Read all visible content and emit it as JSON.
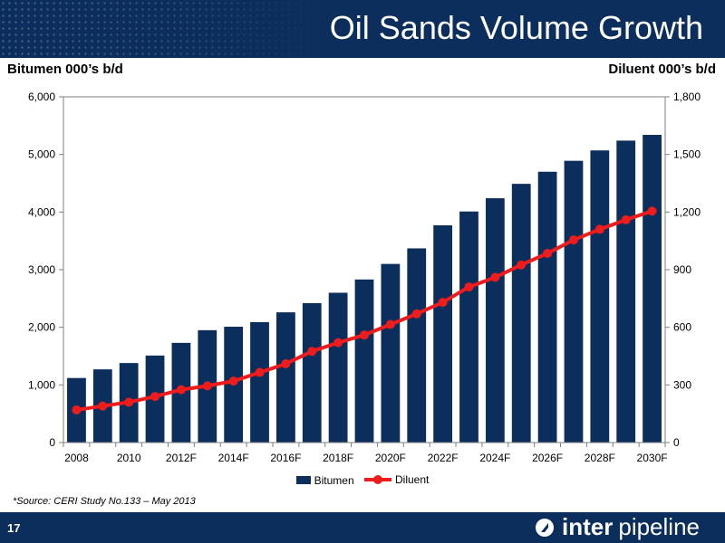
{
  "header": {
    "title": "Oil Sands Volume Growth"
  },
  "chart_data": {
    "type": "bar",
    "categories": [
      "2008",
      "2009",
      "2010",
      "2011",
      "2012F",
      "2013F",
      "2014F",
      "2015F",
      "2016F",
      "2017F",
      "2018F",
      "2019F",
      "2020F",
      "2021F",
      "2022F",
      "2023F",
      "2024F",
      "2025F",
      "2026F",
      "2027F",
      "2028F",
      "2029F",
      "2030F"
    ],
    "tick_labels": [
      "2008",
      "2010",
      "2012F",
      "2014F",
      "2016F",
      "2018F",
      "2020F",
      "2022F",
      "2024F",
      "2026F",
      "2028F",
      "2030F"
    ],
    "series": [
      {
        "name": "Bitumen",
        "type": "bar",
        "axis": "left",
        "color": "#0b2e5c",
        "values": [
          1120,
          1270,
          1380,
          1510,
          1730,
          1950,
          2010,
          2090,
          2260,
          2420,
          2600,
          2830,
          3100,
          3370,
          3770,
          4010,
          4240,
          4490,
          4700,
          4890,
          5070,
          5240,
          5340
        ]
      },
      {
        "name": "Diluent",
        "type": "line",
        "axis": "right",
        "color": "#ee1c1c",
        "values": [
          170,
          190,
          210,
          240,
          275,
          295,
          320,
          365,
          410,
          475,
          520,
          560,
          615,
          670,
          730,
          810,
          860,
          925,
          985,
          1055,
          1110,
          1160,
          1205
        ]
      }
    ],
    "ylabel_left": "Bitumen 000’s b/d",
    "ylabel_right": "Diluent 000’s b/d",
    "ylim_left": [
      0,
      6000
    ],
    "ylim_right": [
      0,
      1800
    ],
    "yticks_left": [
      "0",
      "1,000",
      "2,000",
      "3,000",
      "4,000",
      "5,000",
      "6,000"
    ],
    "yticks_right": [
      "0",
      "300",
      "600",
      "900",
      "1,200",
      "1,500",
      "1,800"
    ],
    "grid": false,
    "legend_position": "bottom"
  },
  "legend": {
    "bitumen": "Bitumen",
    "diluent": "Diluent"
  },
  "source": "*Source: CERI Study No.133 – May 2013",
  "footer": {
    "page_number": "17",
    "logo_inter": "inter",
    "logo_pipeline": "pipeline"
  }
}
